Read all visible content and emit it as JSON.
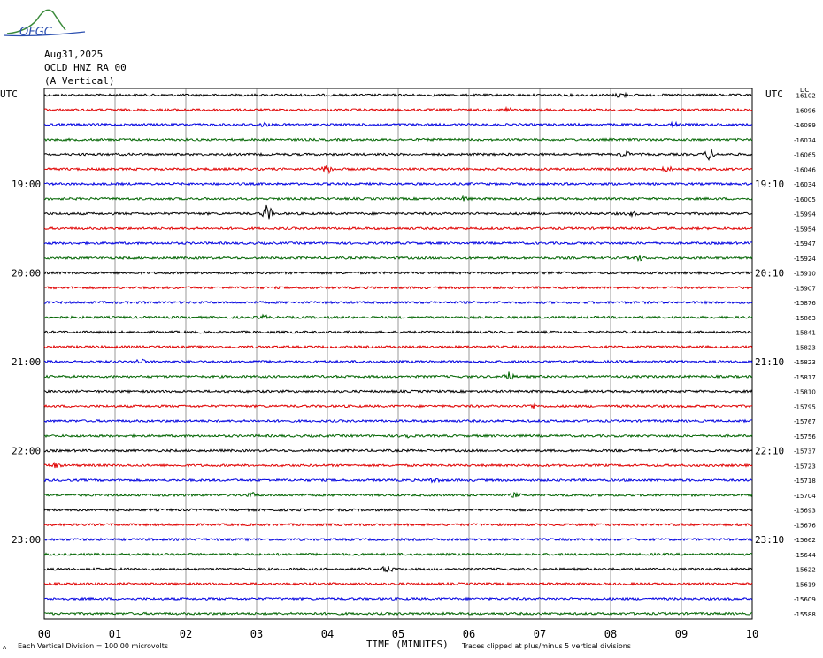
{
  "logo_text": "OFGC",
  "header": {
    "date": "Aug31,2025",
    "station": "OCLD HNZ RA 00",
    "component": "(A Vertical)"
  },
  "chart_data": {
    "type": "line",
    "title": "OCLD HNZ RA 00 (A Vertical) Aug31,2025",
    "xlabel": "TIME (MINUTES)",
    "ylabel": "",
    "x_ticks": [
      "00",
      "01",
      "02",
      "03",
      "04",
      "05",
      "06",
      "07",
      "08",
      "09",
      "10"
    ],
    "xlim": [
      0,
      10
    ],
    "left_axis_label": "UTC",
    "right_axis_label": "UTC",
    "left_time_labels": [
      {
        "row": 6,
        "text": "19:00"
      },
      {
        "row": 12,
        "text": "20:00"
      },
      {
        "row": 18,
        "text": "21:00"
      },
      {
        "row": 24,
        "text": "22:00"
      },
      {
        "row": 30,
        "text": "23:00"
      }
    ],
    "right_time_labels": [
      {
        "row": 6,
        "text": "19:10"
      },
      {
        "row": 12,
        "text": "20:10"
      },
      {
        "row": 18,
        "text": "21:10"
      },
      {
        "row": 24,
        "text": "22:10"
      },
      {
        "row": 30,
        "text": "23:10"
      }
    ],
    "right_header": "DC",
    "trace_offsets": [
      "-16102",
      "-16096",
      "-16089",
      "-16074",
      "-16065",
      "-16046",
      "-16034",
      "-16005",
      "-15994",
      "-15954",
      "-15947",
      "-15924",
      "-15910",
      "-15907",
      "-15876",
      "-15863",
      "-15841",
      "-15823",
      "-15823",
      "-15817",
      "-15810",
      "-15795",
      "-15767",
      "-15756",
      "-15737",
      "-15723",
      "-15718",
      "-15704",
      "-15693",
      "-15676",
      "-15662",
      "-15644",
      "-15622",
      "-15619",
      "-15609",
      "-15588"
    ],
    "trace_colors": [
      "#000000",
      "#e00000",
      "#0000e0",
      "#006400"
    ],
    "events": [
      {
        "row": 0,
        "minute": 8.15,
        "amp": 1.0
      },
      {
        "row": 1,
        "minute": 6.55,
        "amp": 0.8
      },
      {
        "row": 2,
        "minute": 3.1,
        "amp": 0.7
      },
      {
        "row": 2,
        "minute": 8.9,
        "amp": 0.7
      },
      {
        "row": 4,
        "minute": 8.2,
        "amp": 1.2
      },
      {
        "row": 4,
        "minute": 9.4,
        "amp": 2.0
      },
      {
        "row": 5,
        "minute": 4.0,
        "amp": 1.5
      },
      {
        "row": 5,
        "minute": 8.8,
        "amp": 0.8
      },
      {
        "row": 7,
        "minute": 5.95,
        "amp": 0.7
      },
      {
        "row": 8,
        "minute": 3.15,
        "amp": 3.0
      },
      {
        "row": 8,
        "minute": 8.3,
        "amp": 0.6
      },
      {
        "row": 11,
        "minute": 8.4,
        "amp": 0.9
      },
      {
        "row": 15,
        "minute": 3.1,
        "amp": 0.7
      },
      {
        "row": 18,
        "minute": 1.35,
        "amp": 0.9
      },
      {
        "row": 19,
        "minute": 6.55,
        "amp": 1.6
      },
      {
        "row": 21,
        "minute": 6.9,
        "amp": 0.7
      },
      {
        "row": 23,
        "minute": 5.1,
        "amp": 0.8
      },
      {
        "row": 25,
        "minute": 0.15,
        "amp": 0.8
      },
      {
        "row": 26,
        "minute": 5.5,
        "amp": 0.8
      },
      {
        "row": 27,
        "minute": 2.95,
        "amp": 0.7
      },
      {
        "row": 27,
        "minute": 6.65,
        "amp": 0.6
      },
      {
        "row": 32,
        "minute": 4.85,
        "amp": 1.2
      }
    ],
    "grid": true
  },
  "footer": {
    "scale_note": "Each Vertical Division =  100.00 microvolts",
    "clip_note": "Traces clipped at plus/minus 5 vertical divisions"
  }
}
